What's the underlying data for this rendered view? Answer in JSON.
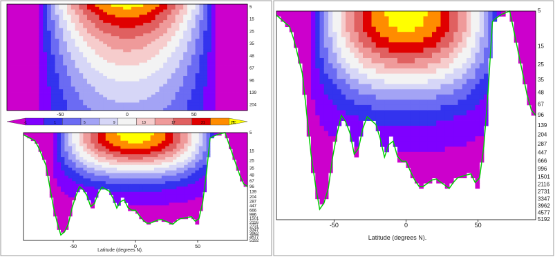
{
  "chart_data": [
    {
      "id": "zoom-section",
      "type": "heatmap",
      "description_axis": "depth",
      "depth_ticks": [
        "5",
        "15",
        "25",
        "35",
        "48",
        "67",
        "96",
        "139",
        "204"
      ],
      "x_ticks": [
        -50,
        0,
        50
      ],
      "x_range": [
        -90,
        90
      ]
    },
    {
      "id": "colorbar",
      "type": "heatmap",
      "levels": [
        -1,
        1,
        5,
        9,
        13,
        17,
        21,
        25
      ],
      "unit": "°C",
      "colors": [
        "#cc00cc",
        "#7f00ff",
        "#3333ee",
        "#6b6bf3",
        "#a3a3f5",
        "#d6d6f7",
        "#f3f3f3",
        "#f6cccc",
        "#ef9a9a",
        "#e06060",
        "#e00000",
        "#ff8c00",
        "#ffff00"
      ]
    },
    {
      "id": "lower-section",
      "type": "heatmap",
      "depth_ticks": [
        "5",
        "15",
        "25",
        "35",
        "48",
        "67",
        "96",
        "139",
        "204",
        "287",
        "447",
        "666",
        "996",
        "1501",
        "2116",
        "2731",
        "3347",
        "3962",
        "4577",
        "5192"
      ],
      "x_ticks": [
        -50,
        0,
        50
      ],
      "xlabel": "Latitude (degrees N).",
      "x_range": [
        -90,
        90
      ]
    },
    {
      "id": "full-section",
      "type": "heatmap",
      "depth_ticks": [
        "5",
        "15",
        "25",
        "35",
        "48",
        "67",
        "96",
        "139",
        "204",
        "287",
        "447",
        "666",
        "996",
        "1501",
        "2116",
        "2731",
        "3347",
        "3962",
        "4577",
        "5192"
      ],
      "x_ticks": [
        -50,
        0,
        50
      ],
      "xlabel": "Latitude (degrees N).",
      "x_range": [
        -90,
        90
      ]
    }
  ],
  "colors": {
    "land_border": "#00cc00",
    "panel_border": "#999999"
  }
}
